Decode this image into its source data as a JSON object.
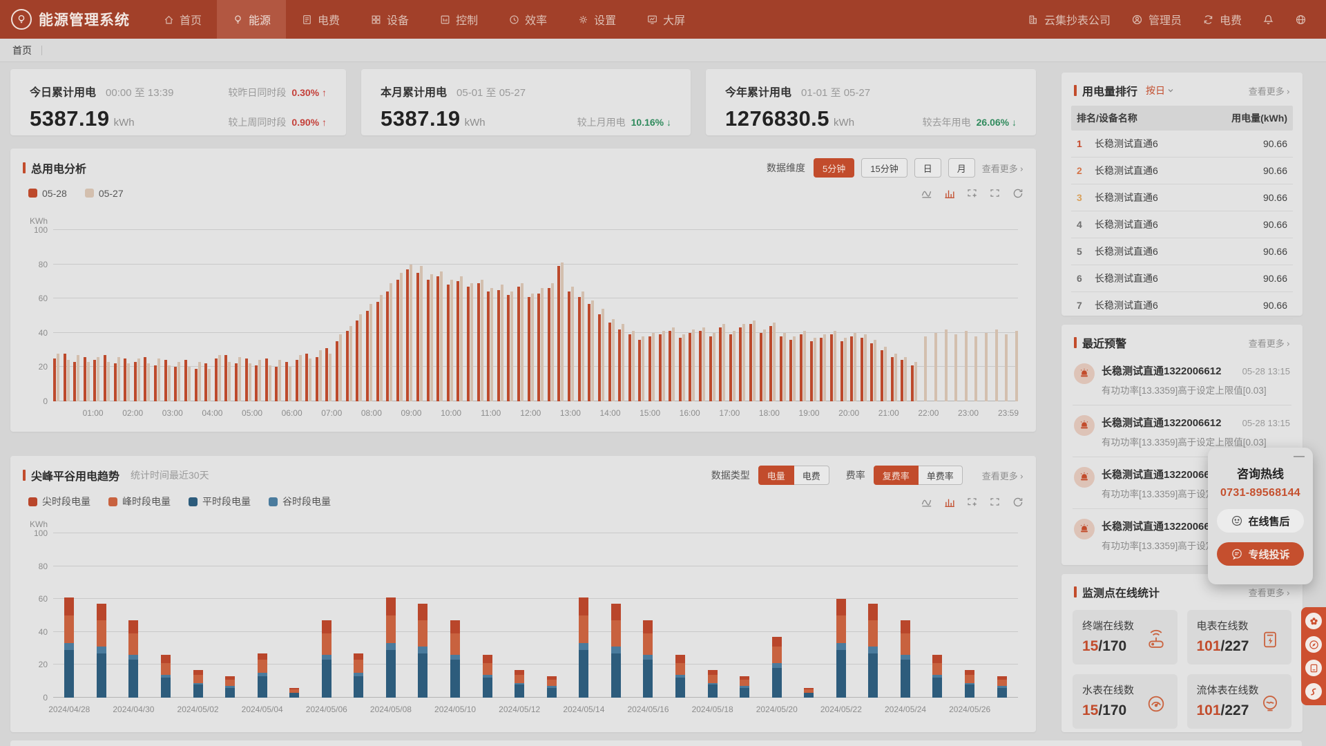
{
  "nav": {
    "brand": "能源管理系统",
    "items": [
      {
        "label": "首页",
        "icon": "home"
      },
      {
        "label": "能源",
        "icon": "bulb"
      },
      {
        "label": "电费",
        "icon": "receipt"
      },
      {
        "label": "设备",
        "icon": "grid"
      },
      {
        "label": "控制",
        "icon": "control"
      },
      {
        "label": "效率",
        "icon": "clock"
      },
      {
        "label": "设置",
        "icon": "gear"
      },
      {
        "label": "大屏",
        "icon": "screen"
      }
    ],
    "active_index": 1,
    "company": "云集抄表公司",
    "user": "管理员",
    "mode": "电费"
  },
  "breadcrumb": "首页",
  "stat_cards": [
    {
      "title": "今日累计用电",
      "period": "00:00 至 13:39",
      "value": "5387.19",
      "unit": "kWh",
      "comparisons": [
        {
          "label": "较昨日同时段",
          "value": "0.30%",
          "direction": "up"
        },
        {
          "label": "较上周同时段",
          "value": "0.90%",
          "direction": "up"
        }
      ]
    },
    {
      "title": "本月累计用电",
      "period": "05-01 至 05-27",
      "value": "5387.19",
      "unit": "kWh",
      "comparisons": [
        {
          "label": "较上月用电",
          "value": "10.16%",
          "direction": "down"
        }
      ]
    },
    {
      "title": "今年累计用电",
      "period": "01-01 至 05-27",
      "value": "1276830.5",
      "unit": "kWh",
      "comparisons": [
        {
          "label": "较去年用电",
          "value": "26.06%",
          "direction": "down"
        }
      ]
    }
  ],
  "chart1_panel": {
    "title": "总用电分析",
    "dimension_label": "数据维度",
    "dimension_buttons": [
      "5分钟",
      "15分钟",
      "日",
      "月"
    ],
    "active_dimension": "5分钟",
    "more_label": "查看更多"
  },
  "chart2_panel": {
    "title": "尖峰平谷用电趋势",
    "subtitle": "统计时间最近30天",
    "type_label": "数据类型",
    "type_buttons": [
      "电量",
      "电费"
    ],
    "active_type": "电量",
    "rate_label": "费率",
    "rate_buttons": [
      "复费率",
      "单费率"
    ],
    "active_rate": "复费率",
    "more_label": "查看更多"
  },
  "ranking": {
    "title": "用电量排行",
    "filter": "按日",
    "more_label": "查看更多",
    "col_name": "排名/设备名称",
    "col_value": "用电量(kWh)",
    "rows": [
      {
        "rank": "1",
        "name": "长稳测试直通6",
        "value": "90.66"
      },
      {
        "rank": "2",
        "name": "长稳测试直通6",
        "value": "90.66"
      },
      {
        "rank": "3",
        "name": "长稳测试直通6",
        "value": "90.66"
      },
      {
        "rank": "4",
        "name": "长稳测试直通6",
        "value": "90.66"
      },
      {
        "rank": "5",
        "name": "长稳测试直通6",
        "value": "90.66"
      },
      {
        "rank": "6",
        "name": "长稳测试直通6",
        "value": "90.66"
      },
      {
        "rank": "7",
        "name": "长稳测试直通6",
        "value": "90.66"
      }
    ]
  },
  "alerts": {
    "title": "最近预警",
    "more_label": "查看更多",
    "items": [
      {
        "name": "长稳测试直通1322006612",
        "time": "05-28 13:15",
        "desc": "有功功率[13.3359]高于设定上限值[0.03]"
      },
      {
        "name": "长稳测试直通1322006612",
        "time": "05-28 13:15",
        "desc": "有功功率[13.3359]高于设定上限值[0.03]"
      },
      {
        "name": "长稳测试直通1322006612",
        "time": "05-28 13:15",
        "desc": "有功功率[13.3359]高于设定上限值[0.03]"
      },
      {
        "name": "长稳测试直通1322006612",
        "time": "05-28 13:15",
        "desc": "有功功率[13.3359]高于设定上限值[0.03]"
      }
    ]
  },
  "monitor": {
    "title": "监测点在线统计",
    "more_label": "查看更多",
    "cards": [
      {
        "label": "终端在线数",
        "current": "15",
        "total": "170",
        "icon": "terminal"
      },
      {
        "label": "电表在线数",
        "current": "101",
        "total": "227",
        "icon": "emeter"
      },
      {
        "label": "水表在线数",
        "current": "15",
        "total": "170",
        "icon": "wmeter"
      },
      {
        "label": "流体表在线数",
        "current": "101",
        "total": "227",
        "icon": "fmeter"
      }
    ]
  },
  "hotline": {
    "title": "咨询热线",
    "phone": "0731-89568144",
    "btn_service": "在线售后",
    "btn_complaint": "专线投诉",
    "minimize": "—"
  },
  "colors": {
    "accent": "#c24c2c",
    "nav": "#a24029",
    "red_up": "#c4403a",
    "green_down": "#2f8a5c",
    "bar_today": "#bd4a2c",
    "bar_yesterday": "#d3bfae",
    "sharp": "#b9462b",
    "peak": "#c8623f",
    "flat": "#2d5c7c",
    "valley": "#4a7b9d"
  },
  "chart_data": [
    {
      "type": "bar",
      "title": "总用电分析",
      "ylabel": "KWh",
      "ylim": [
        0,
        100
      ],
      "yticks": [
        0,
        20,
        40,
        60,
        80,
        100
      ],
      "grid": true,
      "legend_position": "top-left",
      "x_labels": [
        "01:00",
        "02:00",
        "03:00",
        "04:00",
        "05:00",
        "06:00",
        "07:00",
        "08:00",
        "09:00",
        "10:00",
        "11:00",
        "12:00",
        "13:00",
        "14:00",
        "15:00",
        "16:00",
        "17:00",
        "18:00",
        "19:00",
        "20:00",
        "21:00",
        "22:00",
        "23:00",
        "23:59"
      ],
      "series": [
        {
          "name": "05-28",
          "color": "#bd4a2c",
          "values": [
            25,
            28,
            23,
            26,
            24,
            27,
            22,
            25,
            23,
            26,
            21,
            24,
            20,
            24,
            19,
            22,
            25,
            27,
            22,
            25,
            21,
            25,
            20,
            23,
            24,
            28,
            26,
            31,
            35,
            41,
            47,
            53,
            58,
            64,
            71,
            77,
            75,
            71,
            73,
            68,
            70,
            67,
            69,
            64,
            65,
            62,
            67,
            61,
            63,
            66,
            79,
            64,
            61,
            57,
            51,
            46,
            42,
            39,
            36,
            38,
            39,
            41,
            37,
            40,
            41,
            38,
            43,
            39,
            43,
            45,
            40,
            44,
            38,
            36,
            39,
            35,
            37,
            39,
            35,
            38,
            37,
            34,
            30,
            26,
            24,
            21,
            0,
            0,
            0,
            0,
            0,
            0,
            0,
            0,
            0,
            0
          ]
        },
        {
          "name": "05-27",
          "color": "#d3bfae",
          "values": [
            28,
            24,
            27,
            23,
            26,
            23,
            26,
            22,
            25,
            22,
            25,
            21,
            23,
            20,
            23,
            19,
            27,
            23,
            26,
            22,
            24,
            21,
            24,
            20,
            27,
            25,
            30,
            28,
            39,
            44,
            51,
            57,
            62,
            69,
            75,
            80,
            79,
            74,
            76,
            71,
            73,
            69,
            71,
            66,
            68,
            64,
            69,
            63,
            66,
            69,
            81,
            67,
            64,
            59,
            54,
            48,
            45,
            41,
            38,
            40,
            41,
            43,
            39,
            42,
            43,
            40,
            45,
            41,
            45,
            47,
            42,
            46,
            40,
            38,
            41,
            37,
            39,
            41,
            37,
            40,
            39,
            36,
            32,
            28,
            26,
            23,
            38,
            40,
            42,
            39,
            41,
            38,
            40,
            42,
            39,
            41
          ]
        }
      ]
    },
    {
      "type": "bar",
      "subtype": "stacked",
      "title": "尖峰平谷用电趋势",
      "ylabel": "KWh",
      "ylim": [
        0,
        100
      ],
      "yticks": [
        0,
        20,
        40,
        60,
        80,
        100
      ],
      "grid": true,
      "stack_order_bottom_to_top": [
        "平时段电量",
        "谷时段电量",
        "峰时段电量",
        "尖时段电量"
      ],
      "x_labels": [
        "2024/04/28",
        "2024/04/30",
        "2024/05/02",
        "2024/05/04",
        "2024/05/06",
        "2024/05/08",
        "2024/05/10",
        "2024/05/12",
        "2024/05/14",
        "2024/05/16",
        "2024/05/18",
        "2024/05/20",
        "2024/05/22",
        "2024/05/24",
        "2024/05/26"
      ],
      "categories_days": 30,
      "series": [
        {
          "name": "尖时段电量",
          "color": "#b9462b",
          "values": [
            11,
            10,
            8,
            5,
            3,
            2,
            4,
            1,
            8,
            4,
            11,
            10,
            8,
            5,
            3,
            2,
            11,
            10,
            8,
            5,
            3,
            2,
            6,
            1,
            10,
            10,
            8,
            5,
            3,
            2
          ]
        },
        {
          "name": "峰时段电量",
          "color": "#c8623f",
          "values": [
            17,
            16,
            13,
            7,
            5,
            4,
            8,
            2,
            13,
            8,
            17,
            16,
            13,
            7,
            5,
            4,
            17,
            16,
            13,
            7,
            5,
            4,
            10,
            2,
            17,
            16,
            13,
            7,
            5,
            4
          ]
        },
        {
          "name": "平时段电量",
          "color": "#2d5c7c",
          "values": [
            29,
            27,
            23,
            12,
            8,
            6,
            13,
            3,
            23,
            13,
            29,
            27,
            23,
            12,
            8,
            6,
            29,
            27,
            23,
            12,
            8,
            6,
            18,
            3,
            29,
            27,
            23,
            12,
            8,
            6
          ]
        },
        {
          "name": "谷时段电量",
          "color": "#4a7b9d",
          "values": [
            4,
            4,
            3,
            2,
            1,
            1,
            2,
            0,
            3,
            2,
            4,
            4,
            3,
            2,
            1,
            1,
            4,
            4,
            3,
            2,
            1,
            1,
            3,
            0,
            4,
            4,
            3,
            2,
            1,
            1
          ]
        }
      ]
    }
  ]
}
